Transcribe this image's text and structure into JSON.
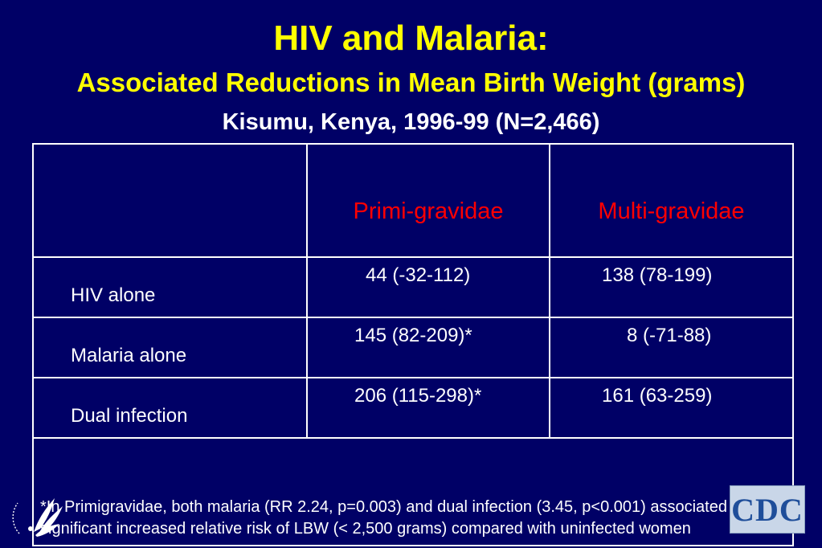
{
  "title": {
    "main": "HIV and Malaria:",
    "subtitle": "Associated Reductions in Mean Birth Weight (grams)",
    "location": "Kisumu, Kenya, 1996-99 (N=2,466)"
  },
  "table": {
    "headers": [
      "",
      "Primi-gravidae",
      "Multi-gravidae"
    ],
    "rows": [
      {
        "label": "HIV alone",
        "primi": "44 (-32-112)",
        "multi": "138 (78-199)"
      },
      {
        "label": "Malaria alone",
        "primi": "145 (82-209)*",
        "multi": "8 (-71-88)"
      },
      {
        "label": "Dual infection",
        "primi": "206 (115-298)*",
        "multi": "161 (63-259)"
      }
    ],
    "footnote": "*In Primigravidae, both malaria (RR 2.24, p=0.003) and dual infection (3.45, p<0.001) associated with significant increased relative risk of LBW (< 2,500 grams) compared with uninfected women"
  },
  "logos": {
    "hhs": "hhs-eagle-icon",
    "cdc_text": "CDC"
  },
  "colors": {
    "background": "#000066",
    "title": "#ffff00",
    "header": "#ff0000",
    "text": "#ffffff"
  }
}
